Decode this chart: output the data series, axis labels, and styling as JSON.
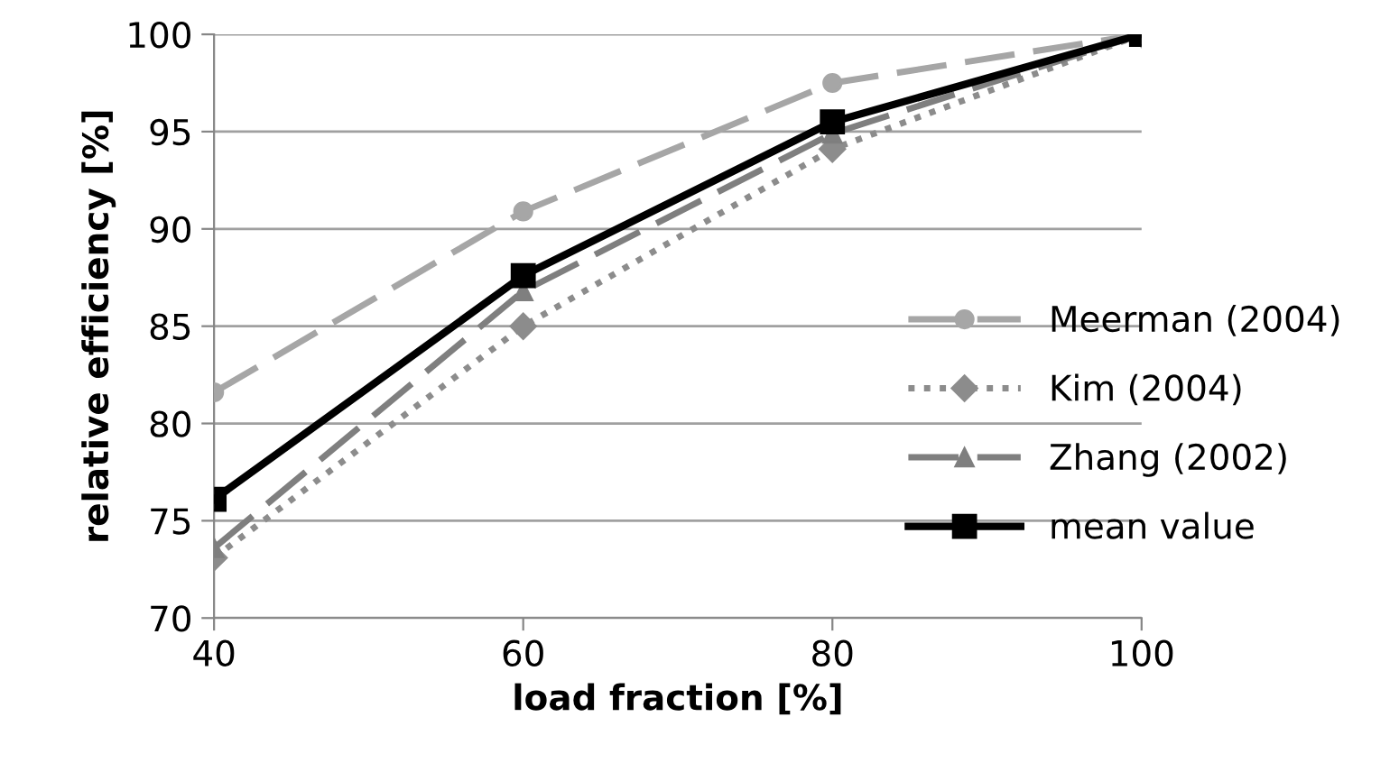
{
  "chart_data": {
    "type": "line",
    "xlabel": "load fraction [%]",
    "ylabel": "relative efficiency [%]",
    "x": [
      40,
      60,
      80,
      100
    ],
    "series": [
      {
        "name": "Meerman (2004)",
        "color": "#a6a6a6",
        "values": [
          81.6,
          90.9,
          97.5,
          100
        ],
        "marker": "circle",
        "line_style": "dashed"
      },
      {
        "name": "Kim (2004)",
        "color": "#8c8c8c",
        "values": [
          73.1,
          85,
          94.1,
          100
        ],
        "marker": "diamond",
        "line_style": "dotted"
      },
      {
        "name": "Zhang (2002)",
        "color": "#7f7f7f",
        "values": [
          73.6,
          86.8,
          94.9,
          100
        ],
        "marker": "triangle",
        "line_style": "dashed"
      },
      {
        "name": "mean value",
        "color": "#000000",
        "values": [
          76.1,
          87.6,
          95.5,
          100
        ],
        "marker": "square",
        "line_style": "solid"
      }
    ],
    "xlim": [
      40,
      100
    ],
    "xticks": [
      40,
      60,
      80,
      100
    ],
    "ylim": [
      70,
      100
    ],
    "yticks": [
      70,
      75,
      80,
      85,
      90,
      95,
      100
    ],
    "grid": "y",
    "legend": "right"
  }
}
